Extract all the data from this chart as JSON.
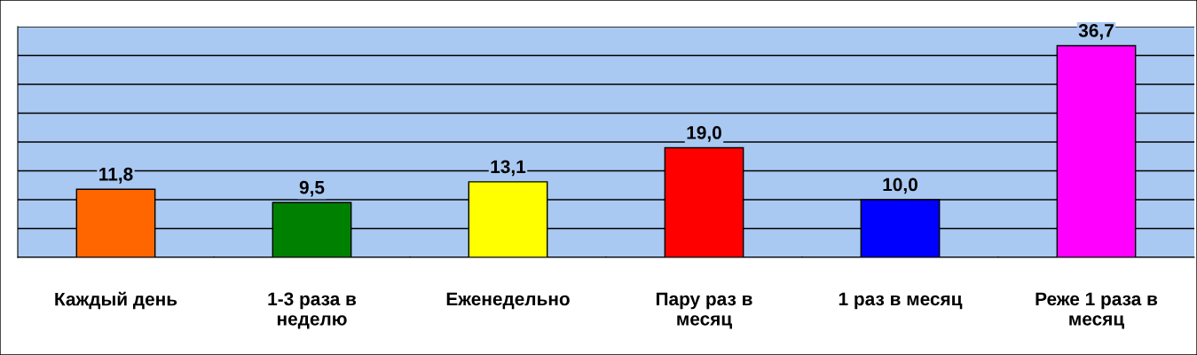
{
  "chart_data": {
    "type": "bar",
    "categories": [
      "Каждый день",
      "1-3 раза в\nнеделю",
      "Еженедельно",
      "Пару раз в\nмесяц",
      "1 раз в месяц",
      "Реже 1 раза в\nмесяц"
    ],
    "values": [
      11.8,
      9.5,
      13.1,
      19.0,
      10.0,
      36.7
    ],
    "colors": [
      "#ff6600",
      "#008000",
      "#ffff00",
      "#ff0000",
      "#0000ff",
      "#ff00ff"
    ],
    "value_labels": [
      "11,8",
      "9,5",
      "13,1",
      "19,0",
      "10,0",
      "36,7"
    ],
    "ylim": [
      0,
      40
    ],
    "yticks": [
      {
        "value": 0,
        "label": null
      },
      {
        "value": 5,
        "label": null
      },
      {
        "value": 10,
        "label": null
      },
      {
        "value": 15,
        "label": null
      },
      {
        "value": 20,
        "label": null
      },
      {
        "value": 25,
        "label": null
      },
      {
        "value": 30,
        "label": null
      },
      {
        "value": 35,
        "label": null
      },
      {
        "value": 40,
        "label": null
      }
    ],
    "grid": "y",
    "tick_labels": "x"
  }
}
